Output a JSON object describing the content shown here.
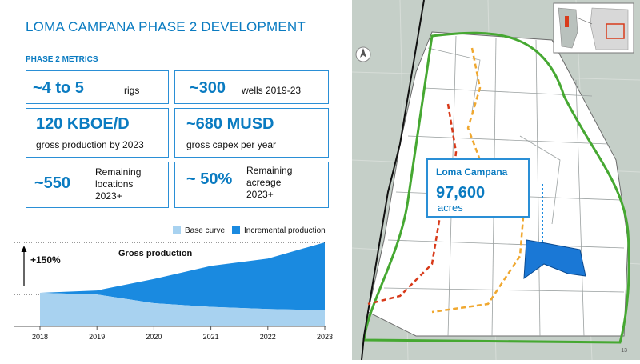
{
  "title": "LOMA CAMPANA PHASE 2 DEVELOPMENT",
  "metrics_heading": "PHASE 2 METRICS",
  "metrics": {
    "rigs": {
      "value": "~4 to 5",
      "label": "rigs"
    },
    "wells": {
      "value": "~300",
      "label": "wells 2019-23"
    },
    "production": {
      "value": "120 KBOE/D",
      "label": "gross production by 2023"
    },
    "capex": {
      "value": "~680 MUSD",
      "label": "gross capex per year"
    },
    "locations": {
      "value": "~550",
      "label_lines": [
        "Remaining",
        "locations",
        "2023+"
      ]
    },
    "acreage": {
      "value": "~ 50%",
      "label_lines": [
        "Remaining",
        "acreage",
        "2023+"
      ]
    }
  },
  "callout": {
    "name": "Loma Campana",
    "value": "97,600",
    "unit": "acres"
  },
  "page_number": "13",
  "colors": {
    "accent": "#0a7bc1",
    "base_curve": "#a8d2f0",
    "incremental": "#1a8ae0"
  },
  "chart_data": {
    "type": "area",
    "title": "Gross production",
    "annotation": "+150%",
    "x": [
      "2018",
      "2019",
      "2020",
      "2021",
      "2022",
      "2023"
    ],
    "series": [
      {
        "name": "Base curve",
        "values": [
          100,
          95,
          69,
          58,
          52,
          48
        ]
      },
      {
        "name": "Incremental production",
        "values": [
          0,
          12,
          72,
          122,
          150,
          202
        ]
      }
    ],
    "ylim": [
      0,
      250
    ],
    "legend": "top-right",
    "grid": false,
    "stacked": true
  }
}
